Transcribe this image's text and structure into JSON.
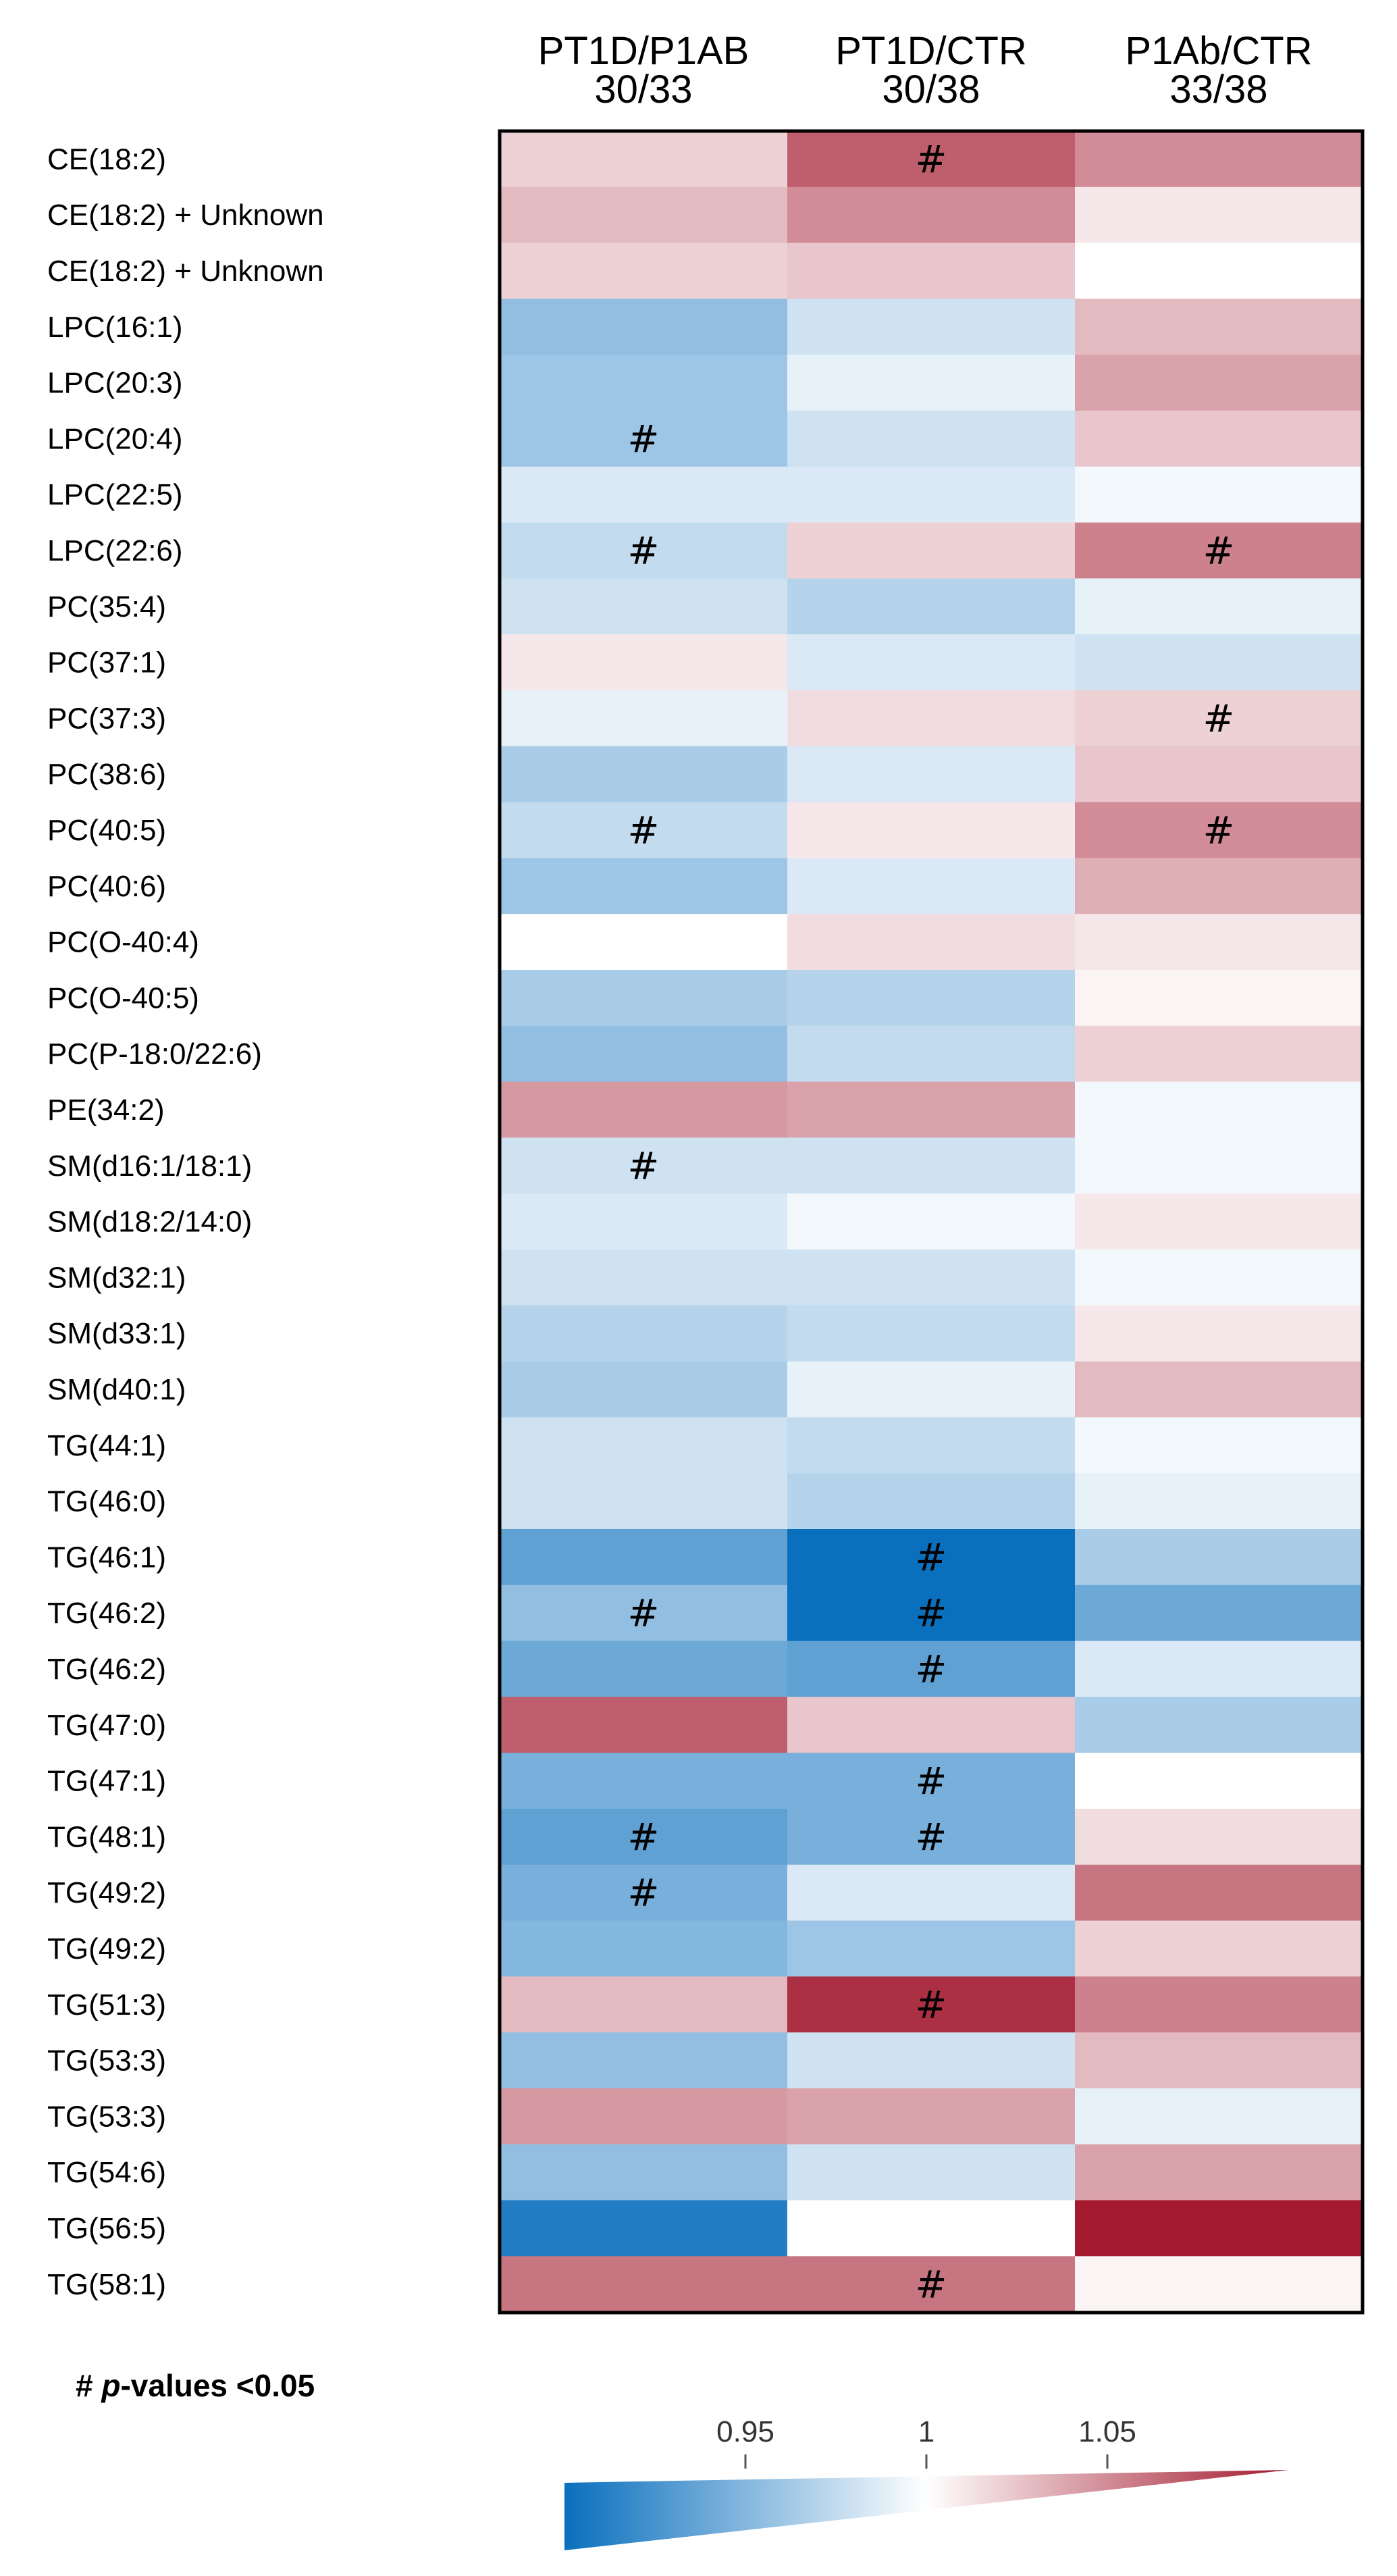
{
  "chart_data": {
    "type": "heatmap",
    "columns": [
      {
        "name": "PT1D/P1AB",
        "ratio": "30/33"
      },
      {
        "name": "PT1D/CTR",
        "ratio": "30/38"
      },
      {
        "name": "P1Ab/CTR",
        "ratio": "33/38"
      }
    ],
    "rows": [
      "CE(18:2)",
      "CE(18:2) + Unknown",
      "CE(18:2) + Unknown",
      "LPC(16:1)",
      "LPC(20:3)",
      "LPC(20:4)",
      "LPC(22:5)",
      "LPC(22:6)",
      "PC(35:4)",
      "PC(37:1)",
      "PC(37:3)",
      "PC(38:6)",
      "PC(40:5)",
      "PC(40:6)",
      "PC(O-40:4)",
      "PC(O-40:5)",
      "PC(P-18:0/22:6)",
      "PE(34:2)",
      "SM(d16:1/18:1)",
      "SM(d18:2/14:0)",
      "SM(d32:1)",
      "SM(d33:1)",
      "SM(d40:1)",
      "TG(44:1)",
      "TG(46:0)",
      "TG(46:1)",
      "TG(46:2)",
      "TG(46:2)",
      "TG(47:0)",
      "TG(47:1)",
      "TG(48:1)",
      "TG(49:2)",
      "TG(49:2)",
      "TG(51:3)",
      "TG(53:3)",
      "TG(53:3)",
      "TG(54:6)",
      "TG(56:5)",
      "TG(58:1)"
    ],
    "values": [
      [
        1.02,
        1.07,
        1.05
      ],
      [
        1.03,
        1.05,
        1.01
      ],
      [
        1.02,
        1.025,
        1.0
      ],
      [
        0.955,
        0.98,
        1.03
      ],
      [
        0.96,
        0.99,
        1.04
      ],
      [
        0.96,
        0.98,
        1.025
      ],
      [
        0.985,
        0.985,
        0.995
      ],
      [
        0.975,
        1.02,
        1.055
      ],
      [
        0.98,
        0.97,
        0.99
      ],
      [
        1.01,
        0.985,
        0.98
      ],
      [
        0.99,
        1.015,
        1.02
      ],
      [
        0.965,
        0.985,
        1.025
      ],
      [
        0.975,
        1.01,
        1.05
      ],
      [
        0.96,
        0.985,
        1.035
      ],
      [
        1.0,
        1.015,
        1.01
      ],
      [
        0.965,
        0.97,
        1.005
      ],
      [
        0.955,
        0.975,
        1.02
      ],
      [
        1.045,
        1.04,
        0.995
      ],
      [
        0.98,
        0.98,
        0.995
      ],
      [
        0.985,
        0.995,
        1.01
      ],
      [
        0.98,
        0.98,
        0.995
      ],
      [
        0.97,
        0.975,
        1.01
      ],
      [
        0.965,
        0.99,
        1.03
      ],
      [
        0.98,
        0.975,
        0.995
      ],
      [
        0.98,
        0.97,
        0.99
      ],
      [
        0.935,
        0.9,
        0.965
      ],
      [
        0.955,
        0.9,
        0.94
      ],
      [
        0.94,
        0.935,
        0.985
      ],
      [
        1.07,
        1.025,
        0.965
      ],
      [
        0.945,
        0.945,
        1.0
      ],
      [
        0.935,
        0.945,
        1.015
      ],
      [
        0.945,
        0.985,
        1.06
      ],
      [
        0.95,
        0.96,
        1.02
      ],
      [
        1.03,
        1.09,
        1.055
      ],
      [
        0.955,
        0.98,
        1.03
      ],
      [
        1.045,
        1.04,
        0.99
      ],
      [
        0.955,
        0.98,
        1.04
      ],
      [
        0.91,
        1.0,
        1.12
      ],
      [
        1.06,
        1.06,
        1.005
      ]
    ],
    "significant": [
      [
        0,
        1
      ],
      [
        5,
        0
      ],
      [
        7,
        0
      ],
      [
        7,
        2
      ],
      [
        10,
        2
      ],
      [
        12,
        0
      ],
      [
        12,
        2
      ],
      [
        18,
        0
      ],
      [
        25,
        1
      ],
      [
        26,
        0
      ],
      [
        26,
        1
      ],
      [
        27,
        1
      ],
      [
        29,
        1
      ],
      [
        30,
        0
      ],
      [
        30,
        1
      ],
      [
        31,
        0
      ],
      [
        33,
        1
      ],
      [
        38,
        1
      ]
    ],
    "significance_marker": "#",
    "legend": {
      "ticks": [
        "0.95",
        "1",
        "1.05"
      ],
      "tick_values": [
        0.95,
        1.0,
        1.05
      ],
      "range": [
        0.9,
        1.1
      ],
      "low_color": "#0a6fbd",
      "mid_color": "#ffffff",
      "high_color": "#a3192e",
      "note_marker": "#",
      "note_p": "p",
      "note_rest": "-values <0.05"
    }
  }
}
